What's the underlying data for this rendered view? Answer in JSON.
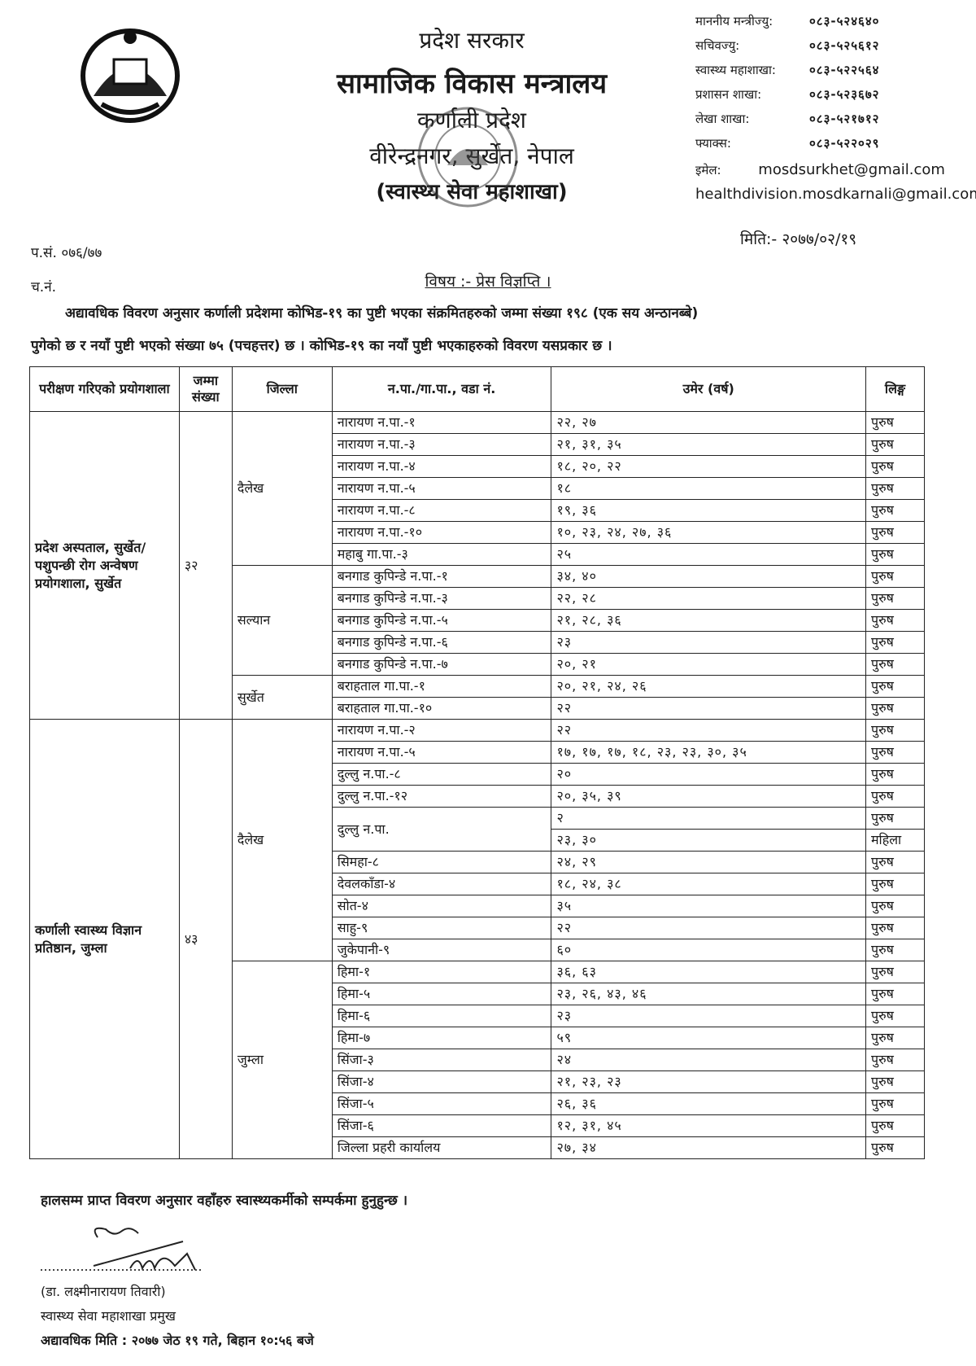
{
  "header": {
    "line1": "प्रदेश सरकार",
    "line2": "सामाजिक विकास मन्त्रालय",
    "line3": "कर्णाली प्रदेश",
    "line4": "वीरेन्द्रनगर, सुर्खेत, नेपाल",
    "line5": "(स्वास्थ्य सेवा महाशाखा)",
    "stamp_text": "सामाजिक विकास मन्त्रालय कर्णाली प्रदेश वीरेन्द्रनगर,सुर्खेत"
  },
  "contacts": [
    {
      "label": "माननीय मन्त्रीज्यु:",
      "value": "०८३-५२४६४०"
    },
    {
      "label": "सचिवज्यु:",
      "value": "०८३-५२५६१२"
    },
    {
      "label": "स्वास्थ्य महाशाखा:",
      "value": "०८३-५२२५६४"
    },
    {
      "label": "प्रशासन शाखा:",
      "value": "०८३-५२३६७२"
    },
    {
      "label": "लेखा शाखा:",
      "value": "०८३-५२१७१२"
    },
    {
      "label": "फ्याक्स:",
      "value": "०८३-५२२०२९"
    }
  ],
  "email_label": "इमेल:",
  "email1": "mosdsurkhet@gmail.com",
  "email2": "healthdivision.mosdkarnali@gmail.com",
  "date": "मिति:- २०७७/०२/१९",
  "ref": "प.सं. ०७६/७७",
  "chalani": "च.नं.",
  "subject": "विषय :- प्रेस विज्ञप्ति ।",
  "para1": "अद्यावधिक विवरण अनुसार कर्णाली प्रदेशमा कोभिड-१९ का पुष्टी भएका संक्रमितहरुको जम्मा संख्या १९८ (एक सय अन्ठानब्बे)",
  "para2": "पुगेको छ र नयाँ पुष्टी भएको संख्या ७५ (पचहत्तर) छ । कोभिड-१९ का नयाँ पुष्टी भएकाहरुको विवरण यसप्रकार छ ।",
  "table": {
    "headers": [
      "परीक्षण गरिएको प्रयोगशाला",
      "जम्मा संख्या",
      "जिल्ला",
      "न.पा./गा.पा., वडा नं.",
      "उमेर (वर्ष)",
      "लिङ्ग"
    ],
    "groups": [
      {
        "lab": "प्रदेश अस्पताल, सुर्खेत/ पशुपन्छी रोग अन्वेषण प्रयोगशाला, सुर्खेत",
        "total": "३२",
        "districts": [
          {
            "name": "दैलेख",
            "wards": [
              {
                "ward": "नारायण न.पा.-१",
                "entries": [
                  {
                    "ages": "२२, २७",
                    "sex": "पुरुष"
                  }
                ]
              },
              {
                "ward": "नारायण न.पा.-३",
                "entries": [
                  {
                    "ages": "२१, ३१, ३५",
                    "sex": "पुरुष"
                  }
                ]
              },
              {
                "ward": "नारायण न.पा.-४",
                "entries": [
                  {
                    "ages": "१८, २०, २२",
                    "sex": "पुरुष"
                  }
                ]
              },
              {
                "ward": "नारायण न.पा.-५",
                "entries": [
                  {
                    "ages": "१८",
                    "sex": "पुरुष"
                  }
                ]
              },
              {
                "ward": "नारायण न.पा.-८",
                "entries": [
                  {
                    "ages": "१९, ३६",
                    "sex": "पुरुष"
                  }
                ]
              },
              {
                "ward": "नारायण न.पा.-१०",
                "entries": [
                  {
                    "ages": "१०, २३, २४, २७, ३६",
                    "sex": "पुरुष"
                  }
                ]
              },
              {
                "ward": "महाबु गा.पा.-३",
                "entries": [
                  {
                    "ages": "२५",
                    "sex": "पुरुष"
                  }
                ]
              }
            ]
          },
          {
            "name": "सल्यान",
            "wards": [
              {
                "ward": "बनगाड कुपिन्डे न.पा.-१",
                "entries": [
                  {
                    "ages": "३४, ४०",
                    "sex": "पुरुष"
                  }
                ]
              },
              {
                "ward": "बनगाड कुपिन्डे न.पा.-३",
                "entries": [
                  {
                    "ages": "२२, २८",
                    "sex": "पुरुष"
                  }
                ]
              },
              {
                "ward": "बनगाड कुपिन्डे न.पा.-५",
                "entries": [
                  {
                    "ages": "२१, २८, ३६",
                    "sex": "पुरुष"
                  }
                ]
              },
              {
                "ward": "बनगाड कुपिन्डे न.पा.-६",
                "entries": [
                  {
                    "ages": "२३",
                    "sex": "पुरुष"
                  }
                ]
              },
              {
                "ward": "बनगाड कुपिन्डे न.पा.-७",
                "entries": [
                  {
                    "ages": "२०, २१",
                    "sex": "पुरुष"
                  }
                ]
              }
            ]
          },
          {
            "name": "सुर्खेत",
            "wards": [
              {
                "ward": "बराहताल गा.पा.-१",
                "entries": [
                  {
                    "ages": "२०, २१, २४, २६",
                    "sex": "पुरुष"
                  }
                ]
              },
              {
                "ward": "बराहताल गा.पा.-१०",
                "entries": [
                  {
                    "ages": "२२",
                    "sex": "पुरुष"
                  }
                ]
              }
            ]
          }
        ]
      },
      {
        "lab": "कर्णाली स्वास्थ्य विज्ञान प्रतिष्ठान, जुम्ला",
        "total": "४३",
        "districts": [
          {
            "name": "दैलेख",
            "wards": [
              {
                "ward": "नारायण न.पा.-२",
                "entries": [
                  {
                    "ages": "२२",
                    "sex": "पुरुष"
                  }
                ]
              },
              {
                "ward": "नारायण न.पा.-५",
                "entries": [
                  {
                    "ages": "१७, १७, १७, १८, २३, २३, ३०, ३५",
                    "sex": "पुरुष"
                  }
                ]
              },
              {
                "ward": "दुल्लु न.पा.-८",
                "entries": [
                  {
                    "ages": "२०",
                    "sex": "पुरुष"
                  }
                ]
              },
              {
                "ward": "दुल्लु न.पा.-१२",
                "entries": [
                  {
                    "ages": "२०, ३५, ३९",
                    "sex": "पुरुष"
                  }
                ]
              },
              {
                "ward": "दुल्लु न.पा.",
                "entries": [
                  {
                    "ages": "२",
                    "sex": "पुरुष"
                  },
                  {
                    "ages": "२३, ३०",
                    "sex": "महिला"
                  }
                ]
              },
              {
                "ward": "सिमहा-८",
                "entries": [
                  {
                    "ages": "२४, २९",
                    "sex": "पुरुष"
                  }
                ]
              },
              {
                "ward": "देवलकाँडा-४",
                "entries": [
                  {
                    "ages": "१८, २४, ३८",
                    "sex": "पुरुष"
                  }
                ]
              },
              {
                "ward": "सोत-४",
                "entries": [
                  {
                    "ages": "३५",
                    "sex": "पुरुष"
                  }
                ]
              },
              {
                "ward": "साहु-९",
                "entries": [
                  {
                    "ages": "२२",
                    "sex": "पुरुष"
                  }
                ]
              },
              {
                "ward": "जुकेपानी-९",
                "entries": [
                  {
                    "ages": "६०",
                    "sex": "पुरुष"
                  }
                ]
              }
            ]
          },
          {
            "name": "जुम्ला",
            "wards": [
              {
                "ward": "हिमा-१",
                "entries": [
                  {
                    "ages": "३६, ६३",
                    "sex": "पुरुष"
                  }
                ]
              },
              {
                "ward": "हिमा-५",
                "entries": [
                  {
                    "ages": "२३, २६, ४३, ४६",
                    "sex": "पुरुष"
                  }
                ]
              },
              {
                "ward": "हिमा-६",
                "entries": [
                  {
                    "ages": "२३",
                    "sex": "पुरुष"
                  }
                ]
              },
              {
                "ward": "हिमा-७",
                "entries": [
                  {
                    "ages": "५९",
                    "sex": "पुरुष"
                  }
                ]
              },
              {
                "ward": "सिंजा-३",
                "entries": [
                  {
                    "ages": "२४",
                    "sex": "पुरुष"
                  }
                ]
              },
              {
                "ward": "सिंजा-४",
                "entries": [
                  {
                    "ages": "२१, २३, २३",
                    "sex": "पुरुष"
                  }
                ]
              },
              {
                "ward": "सिंजा-५",
                "entries": [
                  {
                    "ages": "२६, ३६",
                    "sex": "पुरुष"
                  }
                ]
              },
              {
                "ward": "सिंजा-६",
                "entries": [
                  {
                    "ages": "१२, ३१, ४५",
                    "sex": "पुरुष"
                  }
                ]
              },
              {
                "ward": "जिल्ला प्रहरी कार्यालय",
                "entries": [
                  {
                    "ages": "२७, ३४",
                    "sex": "पुरुष"
                  }
                ]
              }
            ]
          }
        ]
      }
    ]
  },
  "footnote": "हालसम्म प्राप्त विवरण अनुसार वहाँहरु स्वास्थ्यकर्मीको सम्पर्कमा हुनुहुन्छ ।",
  "signatory": {
    "name": "(डा. लक्ष्मीनारायण तिवारी)",
    "role": "स्वास्थ्य सेवा महाशाखा प्रमुख",
    "updated": "अद्यावधिक मिति : २०७७ जेठ १९ गते, बिहान १०:५६ बजे"
  }
}
